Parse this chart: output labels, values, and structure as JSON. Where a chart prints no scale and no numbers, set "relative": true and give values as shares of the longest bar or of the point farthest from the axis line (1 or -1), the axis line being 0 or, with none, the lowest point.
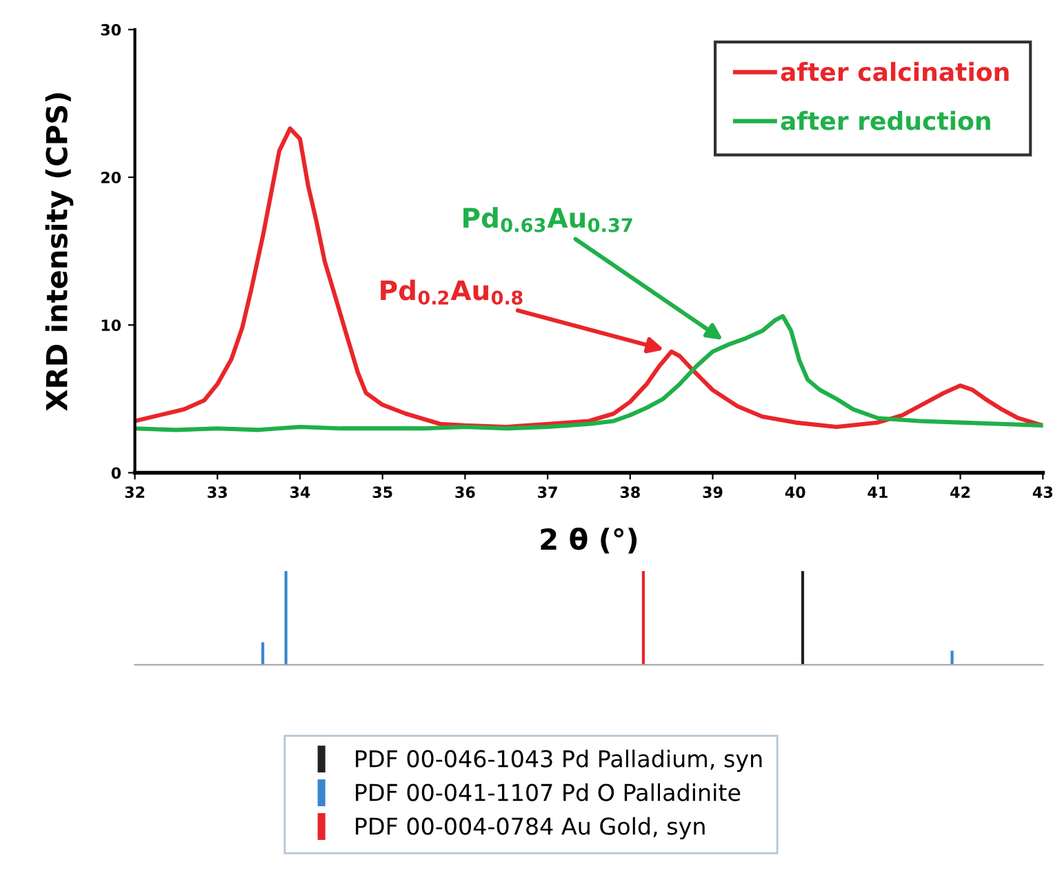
{
  "chart_data": [
    {
      "type": "line",
      "xlabel": "2 θ (°)",
      "ylabel": "XRD intensity (CPS)",
      "xlim": [
        32,
        43
      ],
      "xticks": [
        32,
        33,
        34,
        35,
        36,
        37,
        38,
        39,
        40,
        41,
        42,
        43
      ],
      "ylim": [
        0,
        30
      ],
      "yticks": [
        0,
        10,
        20,
        30
      ],
      "legend": "top right",
      "grid": false,
      "annotations": [
        {
          "text": "Pd$_{0.2}$Au$_{0.8}$",
          "x": 38.5,
          "y": 8.2
        },
        {
          "text": "Pd$_{0.63}$Au$_{0.37}$",
          "x": 39.2,
          "y": 8.7
        }
      ],
      "series": [
        {
          "name": "after calcination",
          "color": "#e8262a",
          "x": [
            32.0,
            32.3,
            32.6,
            32.84,
            33.0,
            33.17,
            33.3,
            33.41,
            33.55,
            33.65,
            33.75,
            33.88,
            34.0,
            34.1,
            34.2,
            34.3,
            34.45,
            34.55,
            34.7,
            34.8,
            35.0,
            35.28,
            35.7,
            36.0,
            36.5,
            37.0,
            37.5,
            37.8,
            38.0,
            38.2,
            38.35,
            38.5,
            38.6,
            38.75,
            39.0,
            39.3,
            39.6,
            40.0,
            40.5,
            41.0,
            41.3,
            41.6,
            41.8,
            42.0,
            42.15,
            42.3,
            42.5,
            42.7,
            43.0
          ],
          "values": [
            3.5,
            3.9,
            4.3,
            4.9,
            6.0,
            7.7,
            9.8,
            12.4,
            16.0,
            18.9,
            21.8,
            23.3,
            22.6,
            19.4,
            17.0,
            14.3,
            11.5,
            9.6,
            6.8,
            5.4,
            4.6,
            4.0,
            3.3,
            3.2,
            3.1,
            3.3,
            3.5,
            4.0,
            4.8,
            6.0,
            7.2,
            8.2,
            7.9,
            7.0,
            5.6,
            4.5,
            3.8,
            3.4,
            3.1,
            3.4,
            3.9,
            4.8,
            5.4,
            5.9,
            5.6,
            5.0,
            4.3,
            3.7,
            3.2
          ]
        },
        {
          "name": "after reduction",
          "color": "#1fb04a",
          "x": [
            32.0,
            32.5,
            33.0,
            33.5,
            34.0,
            34.5,
            35.0,
            35.5,
            36.0,
            36.5,
            37.0,
            37.5,
            37.8,
            38.0,
            38.2,
            38.4,
            38.6,
            38.8,
            39.0,
            39.2,
            39.4,
            39.6,
            39.75,
            39.85,
            39.95,
            40.05,
            40.15,
            40.3,
            40.5,
            40.7,
            41.0,
            41.5,
            42.0,
            42.5,
            43.0
          ],
          "values": [
            3.0,
            2.9,
            3.0,
            2.9,
            3.1,
            3.0,
            3.0,
            3.0,
            3.1,
            3.0,
            3.1,
            3.3,
            3.5,
            3.9,
            4.4,
            5.0,
            6.0,
            7.2,
            8.2,
            8.7,
            9.1,
            9.6,
            10.3,
            10.6,
            9.6,
            7.6,
            6.3,
            5.6,
            5.0,
            4.3,
            3.7,
            3.5,
            3.4,
            3.3,
            3.2
          ]
        }
      ]
    },
    {
      "type": "bar",
      "relative": true,
      "xlim": [
        32,
        43
      ],
      "tick_labels": false,
      "legend": "bottom",
      "series": [
        {
          "name": "PDF 00-046-1043 Pd Palladium, syn",
          "color": "#222222",
          "x": [
            40.09
          ],
          "values": [
            1
          ]
        },
        {
          "name": "PDF 00-041-1107 Pd O Palladinite",
          "color": "#3a86d0",
          "x": [
            33.55,
            33.83,
            41.9
          ],
          "values": [
            0.24,
            1,
            0.15
          ]
        },
        {
          "name": "PDF 00-004-0784 Au Gold, syn",
          "color": "#e8262a",
          "x": [
            38.16
          ],
          "values": [
            1
          ]
        }
      ]
    }
  ]
}
